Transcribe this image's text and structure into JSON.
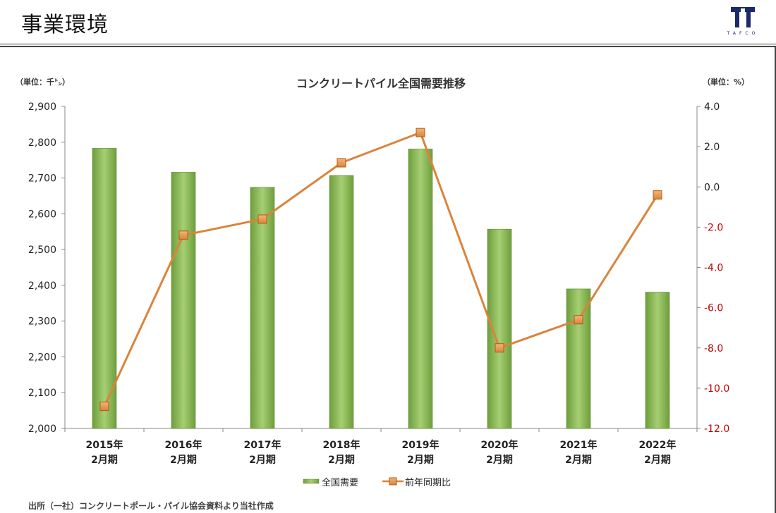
{
  "page": {
    "title": "事業環境",
    "logo_text": "TAFCO",
    "footnote": "出所（一社）コンクリートポール・パイル協会資料より当社作成"
  },
  "colors": {
    "bar": "#7dad4a",
    "bar_light": "#a6cf73",
    "line": "#d9843c",
    "marker_edge": "#b05a10",
    "negative_tick": "#c00000",
    "logo": "#1b2a6b"
  },
  "chart_data": {
    "type": "bar+line",
    "title": "コンクリートパイル全国需要推移",
    "y_left_unit": "（単位：千㌧）",
    "y_right_unit": "（単位：%）",
    "categories": [
      [
        "2015年",
        "2月期"
      ],
      [
        "2016年",
        "2月期"
      ],
      [
        "2017年",
        "2月期"
      ],
      [
        "2018年",
        "2月期"
      ],
      [
        "2019年",
        "2月期"
      ],
      [
        "2020年",
        "2月期"
      ],
      [
        "2021年",
        "2月期"
      ],
      [
        "2022年",
        "2月期"
      ]
    ],
    "series": [
      {
        "name": "全国需要",
        "type": "bar",
        "axis": "left",
        "values": [
          2783,
          2716,
          2674,
          2707,
          2781,
          2557,
          2390,
          2381
        ]
      },
      {
        "name": "前年同期比",
        "type": "line",
        "axis": "right",
        "values": [
          -10.9,
          -2.4,
          -1.6,
          1.2,
          2.7,
          -8.0,
          -6.6,
          -0.4
        ]
      }
    ],
    "y_left": {
      "min": 2000,
      "max": 2900,
      "step": 100
    },
    "y_right": {
      "min": -12,
      "max": 4,
      "step": 2
    },
    "y_left_ticks": [
      "2,000",
      "2,100",
      "2,200",
      "2,300",
      "2,400",
      "2,500",
      "2,600",
      "2,700",
      "2,800",
      "2,900"
    ],
    "y_right_ticks": [
      "-12.0",
      "-10.0",
      "-8.0",
      "-6.0",
      "-4.0",
      "-2.0",
      "0.0",
      "2.0",
      "4.0"
    ],
    "legend_position": "bottom",
    "grid": false
  }
}
